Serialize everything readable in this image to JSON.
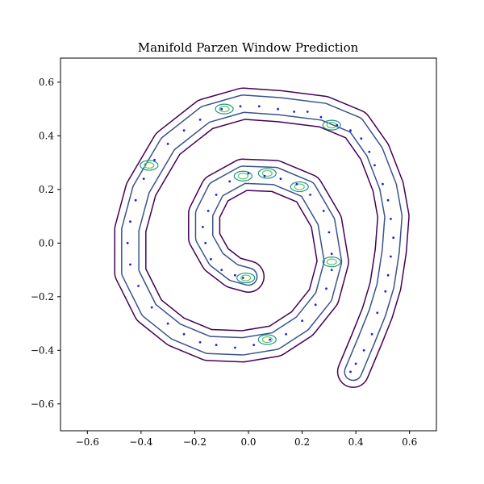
{
  "chart_data": {
    "type": "contour",
    "title": "Manifold Parzen Window Prediction",
    "xlabel": "",
    "ylabel": "",
    "xlim": [
      -0.7,
      0.7
    ],
    "ylim": [
      -0.7,
      0.69
    ],
    "grid": false,
    "x_ticks": [
      -0.6,
      -0.4,
      -0.2,
      0.0,
      0.2,
      0.4,
      0.6
    ],
    "y_ticks": [
      -0.6,
      -0.4,
      -0.2,
      0.0,
      0.2,
      0.4,
      0.6
    ],
    "x_tick_labels": [
      "−0.6",
      "−0.4",
      "−0.2",
      "0.0",
      "0.2",
      "0.4",
      "0.6"
    ],
    "y_tick_labels": [
      "−0.6",
      "−0.4",
      "−0.2",
      "0.0",
      "0.2",
      "0.4",
      "0.6"
    ],
    "contour_levels": [
      {
        "level": 1,
        "color": "#440154"
      },
      {
        "level": 2,
        "color": "#3b528b"
      },
      {
        "level": 3,
        "color": "#21918c"
      },
      {
        "level": 4,
        "color": "#5ec962"
      }
    ],
    "spiral_centerline": [
      [
        0.0,
        -0.125
      ],
      [
        -0.055,
        -0.11
      ],
      [
        -0.12,
        -0.06
      ],
      [
        -0.165,
        0.02
      ],
      [
        -0.165,
        0.11
      ],
      [
        -0.12,
        0.2
      ],
      [
        -0.02,
        0.255
      ],
      [
        0.1,
        0.25
      ],
      [
        0.22,
        0.2
      ],
      [
        0.29,
        0.08
      ],
      [
        0.315,
        -0.07
      ],
      [
        0.28,
        -0.2
      ],
      [
        0.2,
        -0.3
      ],
      [
        0.1,
        -0.365
      ],
      [
        -0.02,
        -0.385
      ],
      [
        -0.15,
        -0.38
      ],
      [
        -0.27,
        -0.33
      ],
      [
        -0.37,
        -0.25
      ],
      [
        -0.44,
        -0.11
      ],
      [
        -0.44,
        0.05
      ],
      [
        -0.4,
        0.2
      ],
      [
        -0.3,
        0.37
      ],
      [
        -0.16,
        0.48
      ],
      [
        -0.02,
        0.52
      ],
      [
        0.12,
        0.51
      ],
      [
        0.28,
        0.49
      ],
      [
        0.4,
        0.44
      ],
      [
        0.47,
        0.34
      ],
      [
        0.52,
        0.21
      ],
      [
        0.54,
        0.1
      ],
      [
        0.53,
        -0.03
      ],
      [
        0.51,
        -0.16
      ],
      [
        0.48,
        -0.26
      ],
      [
        0.44,
        -0.36
      ],
      [
        0.39,
        -0.48
      ]
    ],
    "peaks": [
      [
        -0.01,
        -0.13
      ],
      [
        0.07,
        -0.36
      ],
      [
        -0.37,
        0.29
      ],
      [
        0.31,
        -0.07
      ],
      [
        -0.02,
        0.25
      ],
      [
        0.07,
        0.26
      ],
      [
        -0.09,
        0.5
      ],
      [
        0.31,
        0.44
      ],
      [
        0.19,
        0.21
      ]
    ],
    "points": [
      [
        -0.02,
        -0.13
      ],
      [
        -0.05,
        -0.12
      ],
      [
        -0.1,
        -0.1
      ],
      [
        -0.14,
        -0.06
      ],
      [
        -0.16,
        0.0
      ],
      [
        -0.17,
        0.06
      ],
      [
        -0.15,
        0.12
      ],
      [
        -0.12,
        0.18
      ],
      [
        -0.07,
        0.23
      ],
      [
        0.0,
        0.26
      ],
      [
        0.06,
        0.25
      ],
      [
        0.12,
        0.24
      ],
      [
        0.18,
        0.22
      ],
      [
        0.23,
        0.18
      ],
      [
        0.28,
        0.12
      ],
      [
        0.3,
        0.04
      ],
      [
        0.31,
        -0.04
      ],
      [
        0.31,
        -0.1
      ],
      [
        0.29,
        -0.17
      ],
      [
        0.25,
        -0.23
      ],
      [
        0.2,
        -0.29
      ],
      [
        0.14,
        -0.34
      ],
      [
        0.08,
        -0.36
      ],
      [
        0.02,
        -0.38
      ],
      [
        -0.05,
        -0.39
      ],
      [
        -0.12,
        -0.38
      ],
      [
        -0.18,
        -0.37
      ],
      [
        -0.24,
        -0.34
      ],
      [
        -0.3,
        -0.3
      ],
      [
        -0.36,
        -0.24
      ],
      [
        -0.41,
        -0.16
      ],
      [
        -0.44,
        -0.08
      ],
      [
        -0.45,
        0.0
      ],
      [
        -0.44,
        0.08
      ],
      [
        -0.42,
        0.16
      ],
      [
        -0.39,
        0.24
      ],
      [
        -0.35,
        0.31
      ],
      [
        -0.3,
        0.37
      ],
      [
        -0.24,
        0.42
      ],
      [
        -0.18,
        0.46
      ],
      [
        -0.1,
        0.5
      ],
      [
        -0.03,
        0.51
      ],
      [
        0.04,
        0.51
      ],
      [
        0.11,
        0.5
      ],
      [
        0.17,
        0.49
      ],
      [
        0.22,
        0.49
      ],
      [
        0.27,
        0.47
      ],
      [
        0.33,
        0.44
      ],
      [
        0.38,
        0.42
      ],
      [
        0.42,
        0.39
      ],
      [
        0.45,
        0.34
      ],
      [
        0.47,
        0.29
      ],
      [
        0.5,
        0.22
      ],
      [
        0.52,
        0.16
      ],
      [
        0.53,
        0.09
      ],
      [
        0.54,
        0.02
      ],
      [
        0.53,
        -0.05
      ],
      [
        0.52,
        -0.12
      ],
      [
        0.51,
        -0.18
      ],
      [
        0.48,
        -0.26
      ],
      [
        0.46,
        -0.34
      ],
      [
        0.43,
        -0.4
      ],
      [
        0.4,
        -0.45
      ],
      [
        0.38,
        -0.48
      ]
    ]
  }
}
